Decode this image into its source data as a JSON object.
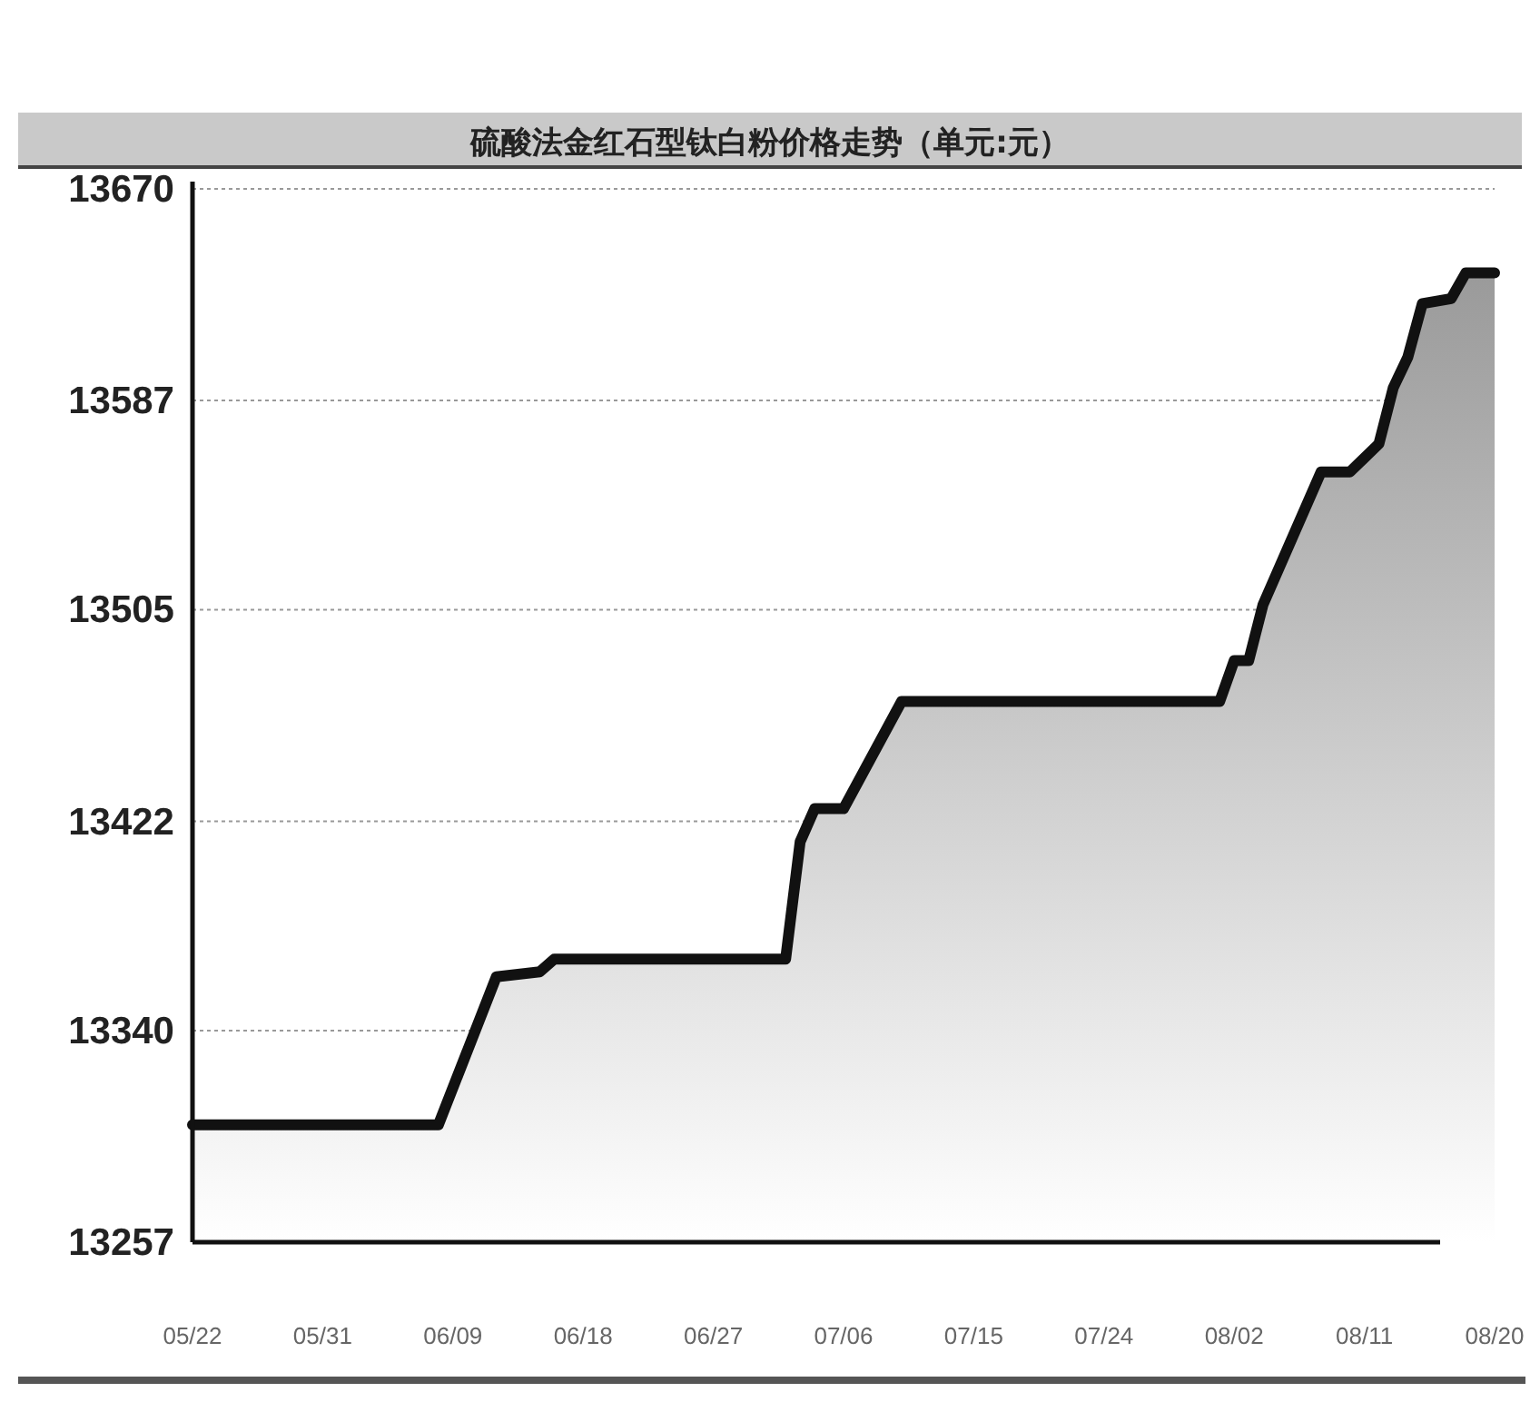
{
  "chart_data": {
    "type": "area",
    "title": "硫酸法金红石型钛白粉价格走势（单元:元）",
    "series": [
      {
        "color": "#111111",
        "x": [
          "--05-22",
          "--06-08",
          "--06-12",
          "--06-15",
          "--06-16",
          "--07-02",
          "--07-03",
          "--07-04",
          "--07-06",
          "--07-10",
          "--08-01",
          "--08-02",
          "--08-03",
          "--08-04",
          "--08-08",
          "--08-10",
          "--08-12",
          "--08-13",
          "--08-14",
          "--08-15",
          "--08-17",
          "--08-18",
          "--08-20"
        ],
        "values": [
          13303,
          13303,
          13361,
          13363,
          13368,
          13368,
          13414,
          13427,
          13427,
          13469,
          13469,
          13485,
          13485,
          13507,
          13559,
          13559,
          13570,
          13592,
          13604,
          13625,
          13627,
          13637,
          13637
        ]
      }
    ],
    "xlim": [
      "--05-22",
      "--08-20"
    ],
    "xticks": [
      {
        "value": "--05-22",
        "label": "05/22"
      },
      {
        "value": "--05-31",
        "label": "05/31"
      },
      {
        "value": "--06-09",
        "label": "06/09"
      },
      {
        "value": "--06-18",
        "label": "06/18"
      },
      {
        "value": "--06-27",
        "label": "06/27"
      },
      {
        "value": "--07-06",
        "label": "07/06"
      },
      {
        "value": "--07-15",
        "label": "07/15"
      },
      {
        "value": "--07-24",
        "label": "07/24"
      },
      {
        "value": "--08-02",
        "label": "08/02"
      },
      {
        "value": "--08-11",
        "label": "08/11"
      },
      {
        "value": "--08-20",
        "label": "08/20"
      }
    ],
    "ylim": [
      13257,
      13670
    ],
    "yticks": [
      13257,
      13340,
      13422,
      13505,
      13587,
      13670
    ],
    "grid": "y",
    "marker": "none",
    "line_style": "solid"
  }
}
